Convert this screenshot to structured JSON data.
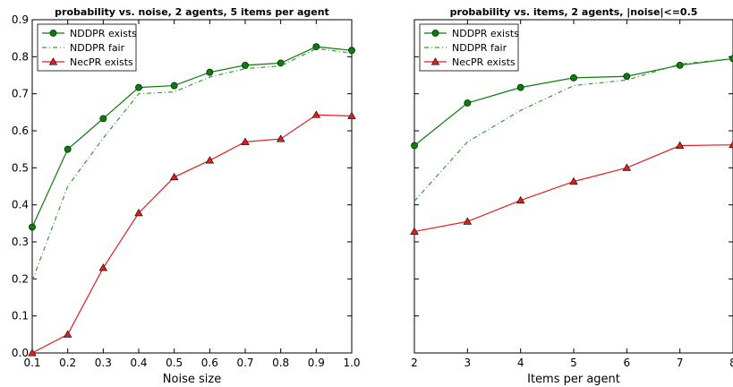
{
  "chart_data": [
    {
      "type": "line",
      "title": "probability vs. noise, 2 agents, 5 items per agent",
      "xlabel": "Noise size",
      "ylabel": "",
      "xlim": [
        0.1,
        1.0
      ],
      "ylim": [
        0.0,
        0.9
      ],
      "xticks": [
        "0.1",
        "0.2",
        "0.3",
        "0.4",
        "0.5",
        "0.6",
        "0.7",
        "0.8",
        "0.9",
        "1.0"
      ],
      "yticks": [
        "0.0",
        "0.1",
        "0.2",
        "0.3",
        "0.4",
        "0.5",
        "0.6",
        "0.7",
        "0.8",
        "0.9"
      ],
      "legend_position": "top-left",
      "grid": false,
      "x": [
        0.1,
        0.2,
        0.3,
        0.4,
        0.5,
        0.6,
        0.7,
        0.8,
        0.9,
        1.0
      ],
      "series": [
        {
          "name": "NDDPR exists",
          "color": "#0a7d0a",
          "style": "solid",
          "marker": "circle",
          "values": [
            0.34,
            0.55,
            0.633,
            0.717,
            0.722,
            0.758,
            0.777,
            0.783,
            0.827,
            0.817
          ]
        },
        {
          "name": "NDDPR fair",
          "color": "#339933",
          "style": "dashdot",
          "marker": "none",
          "values": [
            0.195,
            0.45,
            0.58,
            0.7,
            0.705,
            0.745,
            0.768,
            0.775,
            0.822,
            0.81
          ]
        },
        {
          "name": "NecPR exists",
          "color": "#e02020",
          "style": "solid",
          "marker": "triangle",
          "values": [
            0.0,
            0.05,
            0.23,
            0.378,
            0.475,
            0.52,
            0.57,
            0.578,
            0.643,
            0.64
          ]
        }
      ]
    },
    {
      "type": "line",
      "title": "probability vs. items, 2 agents, |noise|<=0.5",
      "xlabel": "Items per agent",
      "ylabel": "",
      "xlim": [
        2,
        8
      ],
      "ylim": [
        0.0,
        0.9
      ],
      "xticks": [
        "2",
        "3",
        "4",
        "5",
        "6",
        "7",
        "8"
      ],
      "yticks": [],
      "legend_position": "top-left",
      "grid": false,
      "x": [
        2,
        3,
        4,
        5,
        6,
        7,
        8
      ],
      "series": [
        {
          "name": "NDDPR exists",
          "color": "#0a7d0a",
          "style": "solid",
          "marker": "circle",
          "values": [
            0.56,
            0.675,
            0.717,
            0.743,
            0.747,
            0.777,
            0.795
          ]
        },
        {
          "name": "NDDPR fair",
          "color": "#339933",
          "style": "dashdot",
          "marker": "none",
          "values": [
            0.41,
            0.57,
            0.655,
            0.722,
            0.737,
            0.78,
            0.795
          ]
        },
        {
          "name": "NecPR exists",
          "color": "#e02020",
          "style": "solid",
          "marker": "triangle",
          "values": [
            0.328,
            0.355,
            0.412,
            0.463,
            0.5,
            0.56,
            0.562
          ]
        }
      ]
    }
  ]
}
